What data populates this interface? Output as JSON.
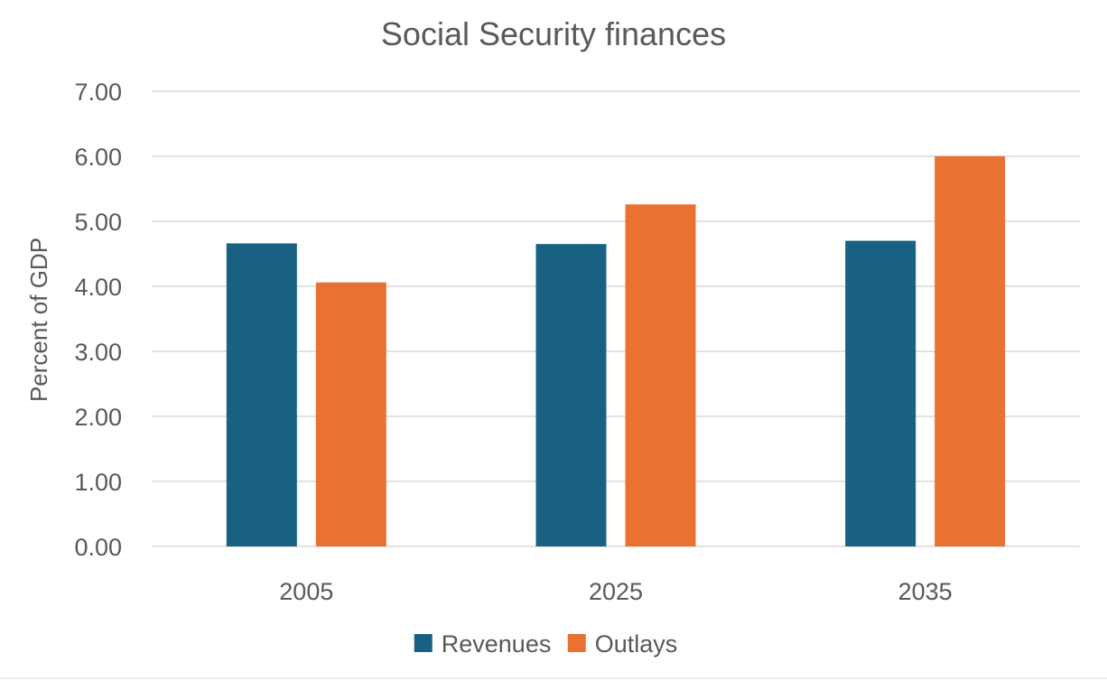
{
  "chart_data": {
    "type": "bar",
    "title": "Social Security finances",
    "xlabel": "",
    "ylabel": "Percent of GDP",
    "categories": [
      "2005",
      "2025",
      "2035"
    ],
    "series": [
      {
        "name": "Revenues",
        "color": "#186183",
        "values": [
          4.66,
          4.65,
          4.7
        ]
      },
      {
        "name": "Outlays",
        "color": "#E97132",
        "values": [
          4.06,
          5.26,
          6.0
        ]
      }
    ],
    "ylim": [
      0,
      7
    ],
    "yticks": [
      "0.00",
      "1.00",
      "2.00",
      "3.00",
      "4.00",
      "5.00",
      "6.00",
      "7.00"
    ],
    "grid": true,
    "legend_position": "bottom"
  }
}
